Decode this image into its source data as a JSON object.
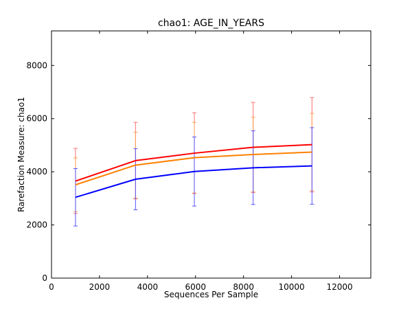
{
  "chart_data": {
    "type": "line",
    "title": "chao1: AGE_IN_YEARS",
    "xlabel": "Sequences Per Sample",
    "ylabel": "Rarefaction Measure: chao1",
    "xlim": [
      0,
      13300
    ],
    "ylim": [
      0,
      9300
    ],
    "xticks": [
      0,
      2000,
      4000,
      6000,
      8000,
      10000,
      12000
    ],
    "yticks": [
      0,
      2000,
      4000,
      6000,
      8000
    ],
    "x": [
      1000,
      3500,
      5950,
      8400,
      10850
    ],
    "legend": "none",
    "grid": false,
    "series": [
      {
        "color": "#ff0000",
        "errorbar_color": "#ff7070",
        "values": [
          3650,
          4420,
          4700,
          4920,
          5020
        ],
        "error_low": [
          2430,
          2980,
          3180,
          3220,
          3240
        ],
        "error_high": [
          4880,
          5860,
          6220,
          6610,
          6790
        ]
      },
      {
        "color": "#ff8000",
        "errorbar_color": "#ffa050",
        "values": [
          3510,
          4250,
          4530,
          4650,
          4740
        ],
        "error_low": [
          2500,
          3010,
          3200,
          3250,
          3280
        ],
        "error_high": [
          4520,
          5490,
          5860,
          6050,
          6200
        ]
      },
      {
        "color": "#0000ff",
        "errorbar_color": "#5555ff",
        "values": [
          3040,
          3720,
          4010,
          4150,
          4220
        ],
        "error_low": [
          1960,
          2570,
          2710,
          2770,
          2780
        ],
        "error_high": [
          4120,
          4870,
          5310,
          5540,
          5660
        ]
      }
    ]
  }
}
